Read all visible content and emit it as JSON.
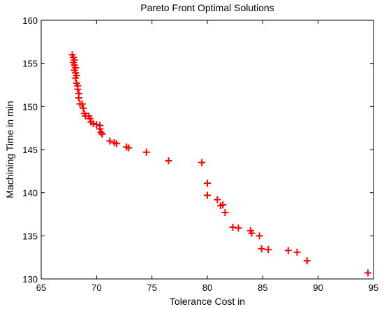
{
  "chart_data": {
    "type": "scatter",
    "title": "Pareto Front Optimal Solutions",
    "xlabel": "Tolerance Cost in",
    "ylabel": "Machining Time in min",
    "xlim": [
      65,
      95
    ],
    "ylim": [
      130,
      160
    ],
    "xticks": [
      "65",
      "70",
      "75",
      "80",
      "85",
      "90",
      "95"
    ],
    "yticks": [
      "130",
      "135",
      "140",
      "145",
      "150",
      "155",
      "160"
    ],
    "grid": false,
    "marker": "+",
    "marker_color": "#ff0000",
    "series": [
      {
        "points": [
          [
            67.8,
            156.0
          ],
          [
            67.9,
            155.7
          ],
          [
            68.0,
            155.4
          ],
          [
            67.9,
            155.1
          ],
          [
            68.0,
            154.8
          ],
          [
            68.1,
            154.5
          ],
          [
            68.0,
            154.2
          ],
          [
            68.1,
            153.9
          ],
          [
            68.2,
            153.6
          ],
          [
            68.1,
            153.3
          ],
          [
            68.2,
            152.7
          ],
          [
            68.3,
            152.4
          ],
          [
            68.3,
            152.0
          ],
          [
            68.4,
            151.5
          ],
          [
            68.4,
            151.0
          ],
          [
            68.5,
            150.3
          ],
          [
            68.7,
            150.3
          ],
          [
            68.8,
            149.8
          ],
          [
            68.9,
            149.2
          ],
          [
            69.0,
            148.9
          ],
          [
            69.3,
            148.9
          ],
          [
            69.4,
            148.6
          ],
          [
            69.5,
            148.2
          ],
          [
            69.7,
            148.0
          ],
          [
            70.0,
            147.9
          ],
          [
            70.3,
            147.8
          ],
          [
            70.3,
            147.4
          ],
          [
            70.4,
            147.0
          ],
          [
            70.5,
            146.8
          ],
          [
            71.2,
            146.0
          ],
          [
            71.6,
            145.8
          ],
          [
            71.8,
            145.7
          ],
          [
            72.7,
            145.3
          ],
          [
            72.9,
            145.2
          ],
          [
            74.5,
            144.7
          ],
          [
            76.5,
            143.7
          ],
          [
            79.5,
            143.5
          ],
          [
            80.0,
            141.1
          ],
          [
            80.0,
            139.7
          ],
          [
            80.9,
            139.2
          ],
          [
            81.2,
            138.5
          ],
          [
            81.4,
            138.6
          ],
          [
            81.6,
            137.7
          ],
          [
            82.3,
            136.0
          ],
          [
            82.8,
            135.9
          ],
          [
            83.9,
            135.6
          ],
          [
            84.0,
            135.3
          ],
          [
            84.7,
            135.0
          ],
          [
            84.9,
            133.5
          ],
          [
            85.5,
            133.4
          ],
          [
            87.3,
            133.3
          ],
          [
            88.1,
            133.1
          ],
          [
            89.0,
            132.1
          ],
          [
            94.5,
            130.7
          ]
        ]
      }
    ]
  }
}
